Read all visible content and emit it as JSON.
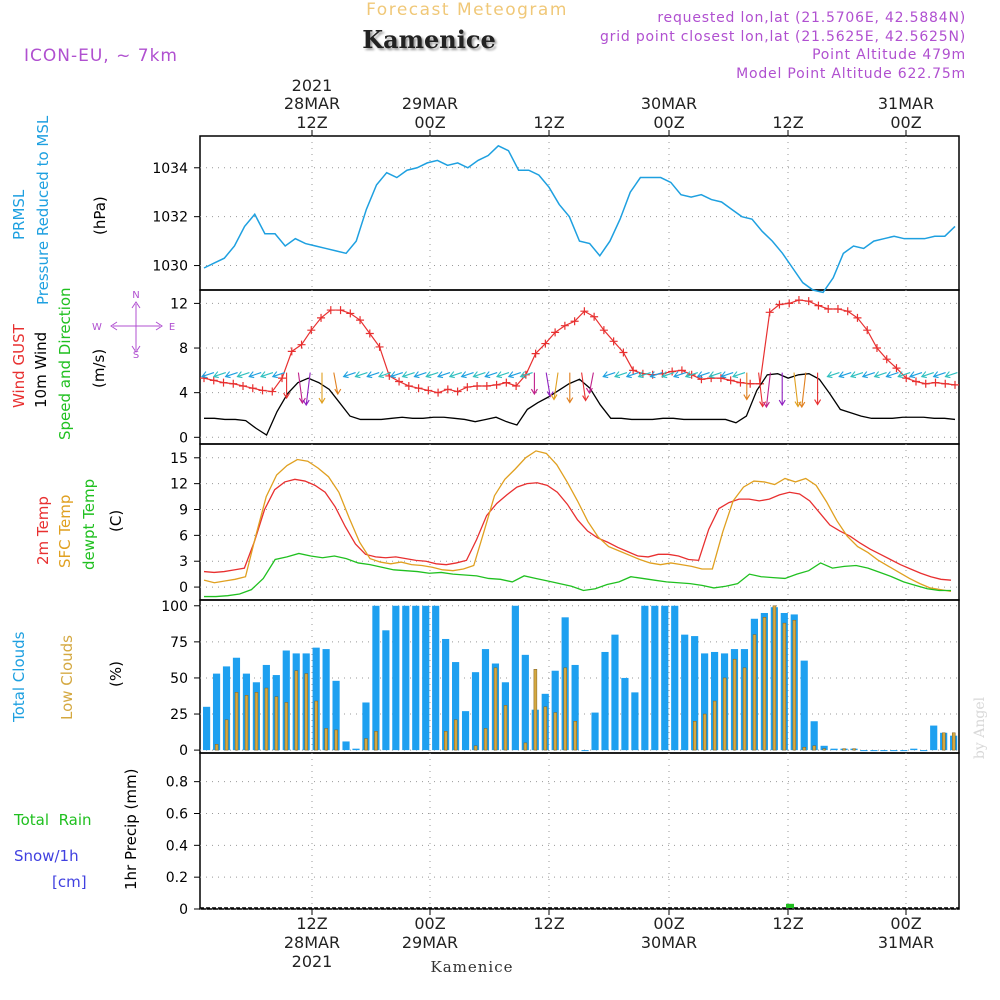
{
  "header": {
    "subtitle": "Forecast Meteogram",
    "location": "Kamenice",
    "model": "ICON-EU, ~ 7km",
    "requested": "requested lon,lat (21.5706E, 42.5884N)",
    "gridpoint": "grid point closest lon,lat (21.5625E, 42.5625N)",
    "point_alt": "Point Altitude 479m",
    "model_alt": "Model Point Altitude 622.75m",
    "footer": "Kamenice",
    "watermark": "by Angel"
  },
  "time_axis": {
    "top_year": "2021",
    "ticks": [
      {
        "date": "28MAR",
        "hour": "12Z",
        "year": "2021"
      },
      {
        "date": "29MAR",
        "hour": "00Z",
        "year": ""
      },
      {
        "date": "",
        "hour": "12Z",
        "year": ""
      },
      {
        "date": "30MAR",
        "hour": "00Z",
        "year": ""
      },
      {
        "date": "",
        "hour": "12Z",
        "year": ""
      },
      {
        "date": "31MAR",
        "hour": "00Z",
        "year": ""
      }
    ]
  },
  "panel_labels": {
    "p1": [
      "PRMSL",
      "Pressure Reduced to MSL"
    ],
    "p1_unit": "(hPa)",
    "p2": [
      "Wind GUST",
      "10m Wind",
      "Speed and Direction"
    ],
    "p2_unit": "(m/s)",
    "compass": {
      "n": "N",
      "s": "S",
      "w": "W",
      "e": "E"
    },
    "p3": [
      "2m Temp",
      "SFC Temp",
      "dewpt Temp"
    ],
    "p3_unit": "(C)",
    "p4": [
      "Total Clouds",
      "Low Clouds"
    ],
    "p4_unit": "(%)",
    "p5": [
      "Total  Rain",
      "Snow/1h",
      "[cm]"
    ],
    "p5_unit": "1hr Precip (mm)"
  },
  "colors": {
    "pressure": "#1ea0e0",
    "gust": "#e83030",
    "wind": "#000000",
    "temp2m": "#e83030",
    "sfc": "#e0a020",
    "dewpt": "#20c020",
    "total_clouds": "#1ea0f0",
    "low_clouds": "#d4a840",
    "rain": "#20c020",
    "header_orange": "#f0c878",
    "purple": "#b050d0"
  },
  "chart_data": [
    {
      "type": "line",
      "title": "PRMSL Pressure Reduced to MSL",
      "ylabel": "hPa",
      "ylim": [
        1029,
        1035.3
      ],
      "yticks": [
        1030,
        1032,
        1034
      ],
      "series": [
        {
          "name": "PRMSL",
          "values": [
            1029.9,
            1030.1,
            1030.3,
            1030.8,
            1031.6,
            1032.1,
            1031.3,
            1031.3,
            1030.8,
            1031.1,
            1030.9,
            1030.8,
            1030.7,
            1030.6,
            1030.5,
            1031.0,
            1032.3,
            1033.3,
            1033.8,
            1033.6,
            1033.9,
            1034.0,
            1034.2,
            1034.3,
            1034.1,
            1034.2,
            1034.0,
            1034.3,
            1034.5,
            1034.9,
            1034.7,
            1033.9,
            1033.9,
            1033.7,
            1033.2,
            1032.5,
            1032.0,
            1031.0,
            1030.9,
            1030.4,
            1031.0,
            1031.9,
            1033.0,
            1033.6,
            1033.6,
            1033.6,
            1033.4,
            1032.9,
            1032.8,
            1032.9,
            1032.7,
            1032.6,
            1032.3,
            1032.0,
            1031.9,
            1031.4,
            1031.0,
            1030.5,
            1029.9,
            1029.3,
            1029.0,
            1028.9,
            1029.5,
            1030.5,
            1030.8,
            1030.7,
            1031.0,
            1031.1,
            1031.2,
            1031.1,
            1031.1,
            1031.1,
            1031.2,
            1031.2,
            1031.6
          ]
        }
      ]
    },
    {
      "type": "line",
      "title": "Wind GUST / 10m Wind Speed and Direction",
      "ylabel": "m/s",
      "ylim": [
        -0.6,
        13.2
      ],
      "yticks": [
        0,
        4,
        8,
        12
      ],
      "series": [
        {
          "name": "Wind GUST",
          "values": [
            5.3,
            5.1,
            4.9,
            4.8,
            4.6,
            4.4,
            4.2,
            4.1,
            5.3,
            7.7,
            8.3,
            9.6,
            10.7,
            11.4,
            11.4,
            11.1,
            10.5,
            9.3,
            8.1,
            5.5,
            5.0,
            4.6,
            4.4,
            4.2,
            4.0,
            4.3,
            4.1,
            4.5,
            4.6,
            4.6,
            4.7,
            4.9,
            4.6,
            5.6,
            7.5,
            8.4,
            9.4,
            10.0,
            10.4,
            11.3,
            10.8,
            9.6,
            8.6,
            7.6,
            6.0,
            5.7,
            5.6,
            5.7,
            5.9,
            6.0,
            5.6,
            5.2,
            5.3,
            5.3,
            5.1,
            4.9,
            4.8,
            4.8,
            11.2,
            11.9,
            12.0,
            12.3,
            12.2,
            11.8,
            11.5,
            11.5,
            11.3,
            10.7,
            9.6,
            8.0,
            7.0,
            6.2,
            5.3,
            5.0,
            4.8,
            4.9,
            4.8,
            4.7
          ]
        },
        {
          "name": "10m Wind",
          "values": [
            1.7,
            1.7,
            1.6,
            1.6,
            1.5,
            0.8,
            0.2,
            2.3,
            3.9,
            4.9,
            5.3,
            4.9,
            4.3,
            3.1,
            1.9,
            1.6,
            1.6,
            1.6,
            1.7,
            1.8,
            1.7,
            1.7,
            1.8,
            1.8,
            1.7,
            1.6,
            1.4,
            1.6,
            1.8,
            1.4,
            1.1,
            2.5,
            3.1,
            3.6,
            4.2,
            4.8,
            5.2,
            4.4,
            2.9,
            1.7,
            1.7,
            1.6,
            1.6,
            1.6,
            1.7,
            1.7,
            1.6,
            1.6,
            1.6,
            1.6,
            1.6,
            1.3,
            1.9,
            4.2,
            5.6,
            5.7,
            5.3,
            5.6,
            5.7,
            5.2,
            3.9,
            2.5,
            2.2,
            1.9,
            1.7,
            1.7,
            1.7,
            1.8,
            1.8,
            1.8,
            1.7,
            1.7,
            1.6
          ]
        }
      ]
    },
    {
      "type": "line",
      "title": "2m Temp / SFC Temp / dewpt Temp",
      "ylabel": "C",
      "ylim": [
        -1.5,
        16.6
      ],
      "yticks": [
        0,
        3,
        6,
        9,
        12,
        15
      ],
      "series": [
        {
          "name": "2m Temp",
          "values": [
            1.8,
            1.7,
            1.8,
            2.0,
            2.2,
            5.3,
            9.0,
            11.3,
            12.2,
            12.5,
            12.3,
            11.8,
            11.0,
            9.3,
            7.0,
            5.0,
            3.8,
            3.5,
            3.4,
            3.5,
            3.3,
            3.1,
            3.0,
            2.7,
            2.6,
            2.8,
            3.1,
            5.5,
            8.3,
            9.7,
            10.7,
            11.6,
            12.0,
            12.1,
            11.8,
            11.0,
            9.6,
            7.8,
            6.5,
            5.7,
            5.2,
            4.6,
            4.1,
            3.6,
            3.5,
            3.8,
            3.8,
            3.6,
            3.2,
            3.1,
            6.7,
            9.1,
            9.8,
            10.2,
            10.2,
            10.0,
            10.2,
            10.7,
            11.0,
            10.8,
            10.0,
            8.6,
            7.2,
            6.5,
            5.9,
            5.1,
            4.4,
            3.8,
            3.2,
            2.6,
            2.1,
            1.6,
            1.2,
            0.9,
            0.8
          ]
        },
        {
          "name": "SFC Temp",
          "values": [
            0.8,
            0.5,
            0.7,
            0.9,
            1.2,
            6.0,
            10.5,
            13.0,
            14.1,
            14.8,
            14.6,
            13.8,
            12.8,
            11.0,
            8.0,
            5.2,
            3.3,
            2.9,
            2.7,
            2.9,
            2.6,
            2.5,
            2.3,
            2.0,
            1.9,
            2.1,
            2.5,
            6.5,
            10.6,
            12.5,
            13.7,
            15.0,
            15.8,
            15.5,
            14.2,
            12.2,
            10.0,
            7.6,
            5.8,
            4.7,
            4.2,
            3.7,
            3.2,
            2.8,
            2.6,
            2.8,
            2.6,
            2.4,
            2.1,
            2.1,
            6.4,
            10.0,
            11.6,
            12.3,
            12.2,
            11.9,
            12.6,
            12.2,
            12.6,
            11.8,
            9.9,
            7.7,
            5.9,
            4.7,
            4.0,
            3.1,
            2.4,
            1.7,
            1.0,
            0.4,
            -0.1,
            -0.3,
            -0.5
          ]
        },
        {
          "name": "dewpt Temp",
          "values": [
            -1.1,
            -1.1,
            -1.0,
            -0.8,
            -0.3,
            1.0,
            3.2,
            3.5,
            3.9,
            3.6,
            3.4,
            3.6,
            3.3,
            2.8,
            2.6,
            2.3,
            2.0,
            1.9,
            1.8,
            1.6,
            1.7,
            1.5,
            1.4,
            1.3,
            1.0,
            0.9,
            0.6,
            1.3,
            1.0,
            0.7,
            0.4,
            0.1,
            -0.4,
            -0.2,
            0.3,
            0.6,
            1.2,
            1.0,
            0.8,
            0.6,
            0.5,
            0.4,
            0.2,
            -0.1,
            0.1,
            0.4,
            1.5,
            1.2,
            1.1,
            1.0,
            1.5,
            1.9,
            2.8,
            2.2,
            2.4,
            2.5,
            2.2,
            1.7,
            1.2,
            0.6,
            0.2,
            -0.2,
            -0.4,
            -0.4
          ]
        }
      ]
    },
    {
      "type": "bar",
      "title": "Total Clouds / Low Clouds",
      "ylabel": "%",
      "ylim": [
        -2,
        104
      ],
      "yticks": [
        0,
        25,
        50,
        75,
        100
      ],
      "series": [
        {
          "name": "Total Clouds",
          "values": [
            30,
            53,
            58,
            64,
            53,
            47,
            59,
            52,
            69,
            67,
            67,
            71,
            70,
            48,
            6,
            1,
            33,
            100,
            83,
            100,
            100,
            100,
            100,
            100,
            77,
            61,
            27,
            54,
            70,
            60,
            47,
            100,
            66,
            28,
            39,
            55,
            92,
            59,
            0,
            26,
            68,
            80,
            50,
            40,
            100,
            100,
            100,
            100,
            80,
            79,
            67,
            68,
            67,
            70,
            70,
            91,
            95,
            99,
            95,
            94,
            62,
            20,
            3,
            1,
            1,
            1,
            0,
            0,
            0,
            0,
            0,
            1,
            0,
            17,
            12,
            10
          ]
        },
        {
          "name": "Low Clouds",
          "values": [
            0,
            4,
            21,
            40,
            38,
            40,
            43,
            37,
            33,
            55,
            53,
            34,
            15,
            14,
            0,
            0,
            8,
            13,
            0,
            0,
            0,
            0,
            0,
            0,
            13,
            21,
            0,
            3,
            15,
            57,
            31,
            0,
            5,
            56,
            30,
            26,
            57,
            20,
            0,
            0,
            0,
            0,
            0,
            0,
            0,
            0,
            0,
            0,
            0,
            20,
            25,
            34,
            50,
            63,
            57,
            80,
            92,
            100,
            88,
            90,
            2,
            3,
            1,
            0,
            1,
            1,
            0,
            0,
            0,
            0,
            0,
            0,
            0,
            0,
            12,
            12
          ]
        }
      ]
    },
    {
      "type": "bar",
      "title": "Total Rain / Snow 1hr Precip",
      "ylabel": "1hr Precip (mm)",
      "ylim": [
        0,
        0.98
      ],
      "yticks": [
        0,
        0.2,
        0.4,
        0.6,
        0.8
      ],
      "series": [
        {
          "name": "Total Rain",
          "values": [
            0.02
          ]
        }
      ]
    }
  ]
}
